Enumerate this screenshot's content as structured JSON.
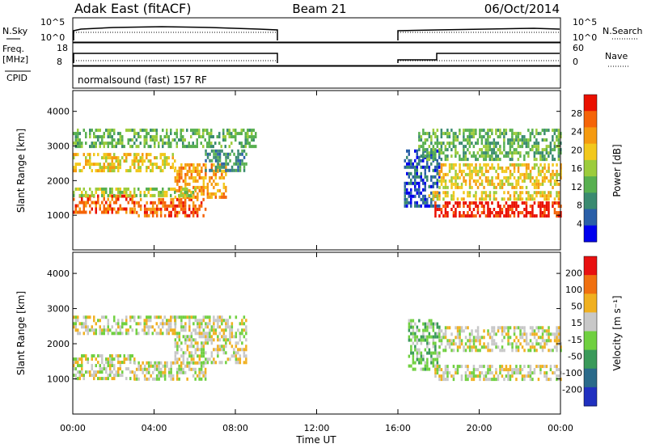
{
  "header": {
    "station": "Adak East (fitACF)",
    "beam": "Beam 21",
    "date": "06/Oct/2014"
  },
  "status": {
    "nsky_label": "N.Sky",
    "nsearch_label": "N.Search",
    "noise_ticks": [
      "10^5",
      "10^0"
    ],
    "freq_label_1": "Freq.",
    "freq_label_2": "[MHz]",
    "freq_ticks": [
      "18",
      "8"
    ],
    "nave_label": "Nave",
    "nave_ticks": [
      "60",
      "0"
    ],
    "cpid_label": "CPID",
    "cpid_text": "normalsound (fast) 157 RF"
  },
  "chart_data": [
    {
      "type": "heatmap",
      "name": "power",
      "ylabel": "Slant Range [km]",
      "ylim": [
        0,
        4600
      ],
      "yticks": [
        1000,
        2000,
        3000,
        4000
      ],
      "xlim": [
        0,
        24
      ],
      "colorbar": {
        "label": "Power [dB]",
        "ticks": [
          "4",
          "8",
          "12",
          "16",
          "20",
          "24",
          "28"
        ],
        "colors": [
          "#0000ee",
          "#2a5fa8",
          "#3a8a70",
          "#58b050",
          "#9ccc3c",
          "#f2c81c",
          "#f59a10",
          "#f56408",
          "#ea1000"
        ]
      },
      "echo_bands": [
        {
          "t0": 0,
          "t1": 3.0,
          "r0": 1050,
          "r1": 1600,
          "level": 7
        },
        {
          "t0": 3.0,
          "t1": 6.5,
          "r0": 1000,
          "r1": 1500,
          "level": 7
        },
        {
          "t0": 5.0,
          "t1": 7.5,
          "r0": 1500,
          "r1": 2500,
          "level": 6
        },
        {
          "t0": 0,
          "t1": 6.0,
          "r0": 1600,
          "r1": 1800,
          "level": 4
        },
        {
          "t0": 0,
          "t1": 5.0,
          "r0": 2300,
          "r1": 2800,
          "level": 5
        },
        {
          "t0": 6.5,
          "t1": 8.5,
          "r0": 2300,
          "r1": 2900,
          "level": 2
        },
        {
          "t0": 0,
          "t1": 9.0,
          "r0": 3000,
          "r1": 3500,
          "level": 3
        },
        {
          "t0": 16.3,
          "t1": 18.0,
          "r0": 1300,
          "r1": 2900,
          "level": 1
        },
        {
          "t0": 17.8,
          "t1": 24.0,
          "r0": 950,
          "r1": 1400,
          "level": 8
        },
        {
          "t0": 17.5,
          "t1": 24.0,
          "r0": 1500,
          "r1": 1700,
          "level": 5
        },
        {
          "t0": 18.0,
          "t1": 24.0,
          "r0": 1800,
          "r1": 2500,
          "level": 5
        },
        {
          "t0": 17.0,
          "t1": 24.0,
          "r0": 2600,
          "r1": 3500,
          "level": 3
        }
      ]
    },
    {
      "type": "heatmap",
      "name": "velocity",
      "ylabel": "Slant Range [km]",
      "ylim": [
        0,
        4600
      ],
      "yticks": [
        1000,
        2000,
        3000,
        4000
      ],
      "xlim": [
        0,
        24
      ],
      "xlabel": "Time UT",
      "xticks": [
        "00:00",
        "04:00",
        "08:00",
        "12:00",
        "16:00",
        "20:00",
        "00:00"
      ],
      "colorbar": {
        "label": "Velocity [m s⁻¹]",
        "ticks": [
          "200",
          "100",
          "50",
          "15",
          "-15",
          "-50",
          "-100",
          "-200"
        ],
        "colors": [
          "#2030c0",
          "#2a6a8a",
          "#3a9a5a",
          "#70d040",
          "#c8c8c8",
          "#f0b020",
          "#f07010",
          "#e81010"
        ]
      },
      "echo_bands": [
        {
          "t0": 0,
          "t1": 3.0,
          "r0": 1050,
          "r1": 1700,
          "level": 4
        },
        {
          "t0": 3.0,
          "t1": 6.5,
          "r0": 1000,
          "r1": 1500,
          "level": 4
        },
        {
          "t0": 5.0,
          "t1": 8.5,
          "r0": 1500,
          "r1": 2800,
          "level": 4
        },
        {
          "t0": 0,
          "t1": 5.0,
          "r0": 2300,
          "r1": 2800,
          "level": 4
        },
        {
          "t0": 16.5,
          "t1": 18.0,
          "r0": 1300,
          "r1": 2700,
          "level": 3
        },
        {
          "t0": 17.8,
          "t1": 24.0,
          "r0": 950,
          "r1": 1400,
          "level": 4
        },
        {
          "t0": 18.0,
          "t1": 24.0,
          "r0": 1800,
          "r1": 2500,
          "level": 4
        }
      ]
    }
  ]
}
